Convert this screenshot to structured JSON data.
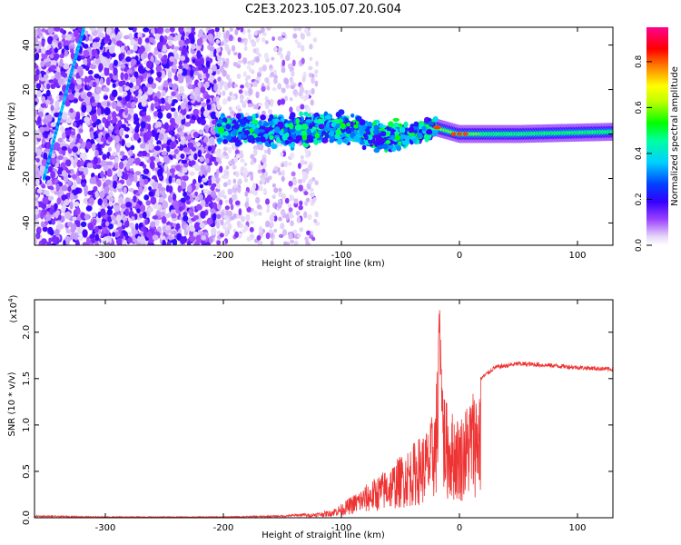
{
  "figure": {
    "title": "C2E3.2023.105.07.20.G04"
  },
  "chart_data": [
    {
      "type": "heatmap",
      "title": "C2E3.2023.105.07.20.G04",
      "xlabel": "Height of straight line (km)",
      "ylabel": "Frequency (Hz)",
      "xlim": [
        -360,
        130
      ],
      "ylim": [
        -50,
        48
      ],
      "x_ticks": [
        -300,
        -200,
        -100,
        0,
        100
      ],
      "x_tick_labels": [
        "-300",
        "-200",
        "-100",
        "0",
        "100"
      ],
      "y_ticks": [
        -40,
        -20,
        0,
        20,
        40
      ],
      "y_tick_labels": [
        "-40",
        "-20",
        "0",
        "20",
        "40"
      ],
      "colorbar": {
        "label": "Normalized spectral amplitude",
        "range": [
          0.0,
          0.95
        ],
        "ticks": [
          0.0,
          0.2,
          0.4,
          0.6,
          0.8
        ],
        "tick_labels": [
          "0.0",
          "0.2",
          "0.4",
          "0.6",
          "0.8"
        ],
        "colormap": [
          "#ffffff",
          "#cfb0f0",
          "#7a00ff",
          "#0000ff",
          "#00e0ff",
          "#00ff40",
          "#ffff00",
          "#ff8000",
          "#ff0000",
          "#ff00a0"
        ]
      },
      "features": {
        "noise_region_x": [
          -360,
          -205
        ],
        "faint_noise_region_x": [
          -205,
          -120
        ],
        "band_center_hz": [
          [
            -200,
            2
          ],
          [
            -150,
            1
          ],
          [
            -100,
            3
          ],
          [
            -70,
            -1
          ],
          [
            -40,
            0
          ],
          [
            -20,
            3
          ],
          [
            0,
            0
          ],
          [
            50,
            0
          ],
          [
            130,
            1
          ]
        ],
        "oblique_streak": [
          [
            -352,
            -20
          ],
          [
            -330,
            25
          ],
          [
            -318,
            48
          ]
        ],
        "peak_location": [
          0,
          0
        ]
      },
      "grid": false
    },
    {
      "type": "line",
      "xlabel": "Height of straight line (km)",
      "ylabel": "SNR (10 * v/v)",
      "y_multiplier": "(x10",
      "y_multiplier_exp": "4",
      "xlim": [
        -360,
        130
      ],
      "ylim": [
        0,
        2.35
      ],
      "x_ticks": [
        -300,
        -200,
        -100,
        0,
        100
      ],
      "x_tick_labels": [
        "-300",
        "-200",
        "-100",
        "0",
        "100"
      ],
      "y_ticks": [
        0.0,
        0.5,
        1.0,
        1.5,
        2.0
      ],
      "y_tick_labels": [
        "0.0",
        "0.5",
        "1.0",
        "1.5",
        "2.0"
      ],
      "line_color": "#ee3333",
      "envelope": {
        "x": [
          -360,
          -300,
          -200,
          -150,
          -130,
          -110,
          -100,
          -80,
          -60,
          -40,
          -25,
          -20,
          -17,
          -15,
          -10,
          0,
          5,
          10,
          20,
          30,
          50,
          80,
          100,
          130
        ],
        "y": [
          0.02,
          0.01,
          0.01,
          0.02,
          0.04,
          0.08,
          0.15,
          0.35,
          0.55,
          0.8,
          1.0,
          1.35,
          2.33,
          1.6,
          1.2,
          1.1,
          1.2,
          1.4,
          1.52,
          1.62,
          1.66,
          1.64,
          1.62,
          1.6
        ]
      },
      "grid": false
    }
  ]
}
